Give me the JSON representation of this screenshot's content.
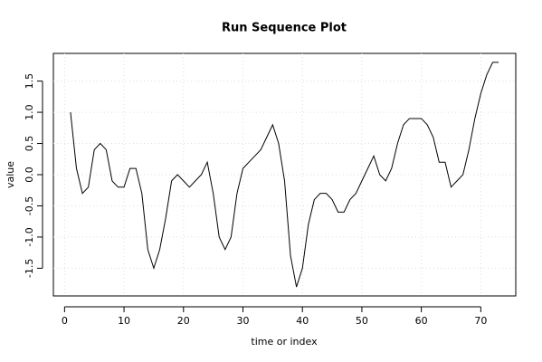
{
  "chart_data": {
    "type": "line",
    "title": "Run Sequence Plot",
    "xlabel": "time or index",
    "ylabel": "value",
    "x": [
      1,
      2,
      3,
      4,
      5,
      6,
      7,
      8,
      9,
      10,
      11,
      12,
      13,
      14,
      15,
      16,
      17,
      18,
      19,
      20,
      21,
      22,
      23,
      24,
      25,
      26,
      27,
      28,
      29,
      30,
      31,
      32,
      33,
      34,
      35,
      36,
      37,
      38,
      39,
      40,
      41,
      42,
      43,
      44,
      45,
      46,
      47,
      48,
      49,
      50,
      51,
      52,
      53,
      54,
      55,
      56,
      57,
      58,
      59,
      60,
      61,
      62,
      63,
      64,
      65,
      66,
      67,
      68,
      69,
      70,
      71,
      72,
      73
    ],
    "series": [
      {
        "name": "value",
        "color": "#000000",
        "values": [
          1.0,
          0.1,
          -0.3,
          -0.2,
          0.4,
          0.5,
          0.4,
          -0.1,
          -0.2,
          -0.2,
          0.1,
          0.1,
          -0.3,
          -1.2,
          -1.5,
          -1.2,
          -0.7,
          -0.1,
          0.0,
          -0.1,
          -0.2,
          -0.1,
          0.0,
          0.2,
          -0.3,
          -1.0,
          -1.2,
          -1.0,
          -0.3,
          0.1,
          0.2,
          0.3,
          0.4,
          0.6,
          0.8,
          0.5,
          -0.1,
          -1.3,
          -1.8,
          -1.5,
          -0.8,
          -0.4,
          -0.3,
          -0.3,
          -0.4,
          -0.6,
          -0.6,
          -0.4,
          -0.3,
          -0.1,
          0.1,
          0.3,
          0.0,
          -0.1,
          0.1,
          0.5,
          0.8,
          0.9,
          0.9,
          0.9,
          0.8,
          0.6,
          0.2,
          0.2,
          -0.2,
          -0.1,
          0.0,
          0.4,
          0.9,
          1.3,
          1.6,
          1.8,
          1.8
        ]
      }
    ],
    "xlim": [
      -1.88,
      75.88
    ],
    "ylim": [
      -1.944,
      1.944
    ],
    "xticks": [
      0,
      10,
      20,
      30,
      40,
      50,
      60,
      70
    ],
    "yticks": [
      -1.5,
      {
        "value": -1,
        "label": "-1.0"
      },
      -0.5,
      {
        "value": 0,
        "label": "0.0"
      },
      0.5,
      {
        "value": 1,
        "label": "1.0"
      },
      1.5
    ],
    "grid": true
  }
}
